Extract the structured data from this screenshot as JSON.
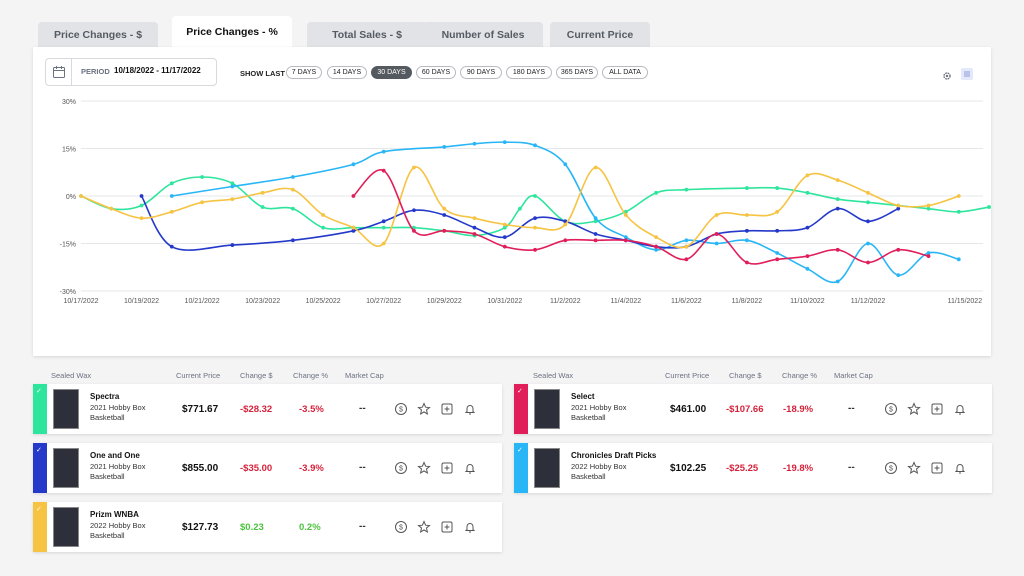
{
  "tabs": [
    {
      "label": "Price Changes - $",
      "active": false
    },
    {
      "label": "Price Changes - %",
      "active": true
    },
    {
      "label": "Total Sales - $",
      "active": false
    },
    {
      "label": "Number of Sales",
      "active": false
    },
    {
      "label": "Current Price",
      "active": false
    }
  ],
  "toolbar": {
    "period_label": "PERIOD",
    "period_value": "10/18/2022 - 11/17/2022",
    "show_last_label": "SHOW LAST",
    "ranges": [
      "7 DAYS",
      "14 DAYS",
      "30 DAYS",
      "60 DAYS",
      "90 DAYS",
      "180 DAYS",
      "365 DAYS",
      "ALL DATA"
    ],
    "active_range": "30 DAYS",
    "icons": [
      "calendar-icon",
      "gear-icon",
      "list-view-icon"
    ]
  },
  "chart_data": {
    "type": "line",
    "y_ticks": [
      "30%",
      "15%",
      "0%",
      "-15%",
      "-30%"
    ],
    "ylim": [
      -30,
      30
    ],
    "x_ticks": [
      "10/17/2022",
      "10/19/2022",
      "10/21/2022",
      "10/23/2022",
      "10/25/2022",
      "10/27/2022",
      "10/29/2022",
      "10/31/2022",
      "11/2/2022",
      "11/4/2022",
      "11/6/2022",
      "11/8/2022",
      "11/10/2022",
      "11/12/2022",
      "11/15/2022"
    ],
    "xlim": [
      0,
      29.8
    ],
    "grid": true,
    "series": [
      {
        "color": "#2ee59d",
        "points": [
          [
            0,
            0
          ],
          [
            1,
            -4
          ],
          [
            2,
            -3
          ],
          [
            3,
            4
          ],
          [
            4,
            6
          ],
          [
            5,
            4
          ],
          [
            6,
            -3.5
          ],
          [
            7,
            -4
          ],
          [
            8,
            -10
          ],
          [
            9,
            -10
          ],
          [
            10,
            -10
          ],
          [
            11,
            -10
          ],
          [
            12,
            -11
          ],
          [
            13,
            -12.5
          ],
          [
            14,
            -10
          ],
          [
            14.5,
            -4
          ],
          [
            15,
            0
          ],
          [
            16,
            -8
          ],
          [
            17,
            -8
          ],
          [
            18,
            -5
          ],
          [
            19,
            1
          ],
          [
            20,
            2
          ],
          [
            22,
            2.5
          ],
          [
            23,
            2.5
          ],
          [
            24,
            1
          ],
          [
            25,
            -1
          ],
          [
            26,
            -2
          ],
          [
            27,
            -3
          ],
          [
            28,
            -4
          ],
          [
            29,
            -5
          ],
          [
            30,
            -3.5
          ]
        ]
      },
      {
        "color": "#29b6f6",
        "points": [
          [
            3,
            0
          ],
          [
            5,
            3
          ],
          [
            7,
            6
          ],
          [
            9,
            10
          ],
          [
            10,
            14
          ],
          [
            12,
            15.5
          ],
          [
            13,
            16.5
          ],
          [
            14,
            17
          ],
          [
            15,
            16
          ],
          [
            16,
            10
          ],
          [
            17,
            -7
          ],
          [
            18,
            -13
          ],
          [
            19,
            -17
          ],
          [
            20,
            -14
          ],
          [
            21,
            -15
          ],
          [
            22,
            -14
          ],
          [
            23,
            -18
          ],
          [
            24,
            -23
          ],
          [
            25,
            -27
          ],
          [
            26,
            -15
          ],
          [
            27,
            -25
          ],
          [
            28,
            -18
          ],
          [
            29,
            -20
          ]
        ]
      },
      {
        "color": "#2439c9",
        "points": [
          [
            2,
            0
          ],
          [
            3,
            -16
          ],
          [
            5,
            -15.5
          ],
          [
            7,
            -14
          ],
          [
            9,
            -11
          ],
          [
            10,
            -8
          ],
          [
            11,
            -4.5
          ],
          [
            12,
            -6
          ],
          [
            13,
            -10
          ],
          [
            14,
            -13
          ],
          [
            15,
            -7
          ],
          [
            16,
            -8
          ],
          [
            17,
            -12
          ],
          [
            18,
            -14
          ],
          [
            19,
            -16
          ],
          [
            20,
            -16
          ],
          [
            21,
            -12
          ],
          [
            22,
            -11
          ],
          [
            23,
            -11
          ],
          [
            24,
            -10
          ],
          [
            25,
            -4
          ],
          [
            26,
            -8
          ],
          [
            27,
            -4
          ]
        ]
      },
      {
        "color": "#f6c343",
        "points": [
          [
            0,
            0
          ],
          [
            1,
            -4
          ],
          [
            2,
            -7
          ],
          [
            3,
            -5
          ],
          [
            4,
            -2
          ],
          [
            5,
            -1
          ],
          [
            6,
            1
          ],
          [
            7,
            2
          ],
          [
            8,
            -6
          ],
          [
            9,
            -10
          ],
          [
            10,
            -15
          ],
          [
            11,
            9
          ],
          [
            12,
            -4
          ],
          [
            13,
            -7
          ],
          [
            14,
            -9
          ],
          [
            15,
            -10
          ],
          [
            16,
            -9
          ],
          [
            17,
            9
          ],
          [
            18,
            -6
          ],
          [
            19,
            -13
          ],
          [
            20,
            -16
          ],
          [
            21,
            -6
          ],
          [
            22,
            -6
          ],
          [
            23,
            -5
          ],
          [
            24,
            6.5
          ],
          [
            25,
            5
          ],
          [
            26,
            1
          ],
          [
            27,
            -3
          ],
          [
            28,
            -3
          ],
          [
            29,
            0
          ]
        ]
      },
      {
        "color": "#e01e5a",
        "points": [
          [
            9,
            0
          ],
          [
            10,
            8
          ],
          [
            11,
            -11
          ],
          [
            12,
            -11
          ],
          [
            13,
            -12
          ],
          [
            14,
            -16
          ],
          [
            15,
            -17
          ],
          [
            16,
            -14
          ],
          [
            17,
            -14
          ],
          [
            18,
            -14
          ],
          [
            19,
            -16
          ],
          [
            20,
            -20
          ],
          [
            21,
            -12
          ],
          [
            22,
            -21
          ],
          [
            23,
            -20
          ],
          [
            24,
            -19
          ],
          [
            25,
            -17
          ],
          [
            26,
            -21
          ],
          [
            27,
            -17
          ],
          [
            28,
            -19
          ]
        ]
      }
    ]
  },
  "table_headers": {
    "sealed_wax": "Sealed Wax",
    "current_price": "Current Price",
    "change_usd": "Change $",
    "change_pct": "Change %",
    "market_cap": "Market Cap"
  },
  "cards_left": [
    {
      "name": "Spectra",
      "year": "2021 Hobby Box",
      "sport": "Basketball",
      "price": "$771.67",
      "change_usd": "-$28.32",
      "change_pct": "-3.5%",
      "market_cap": "--",
      "color": "#2ee59d",
      "trend": "neg"
    },
    {
      "name": "One and One",
      "year": "2021 Hobby Box",
      "sport": "Basketball",
      "price": "$855.00",
      "change_usd": "-$35.00",
      "change_pct": "-3.9%",
      "market_cap": "--",
      "color": "#2439c9",
      "trend": "neg"
    },
    {
      "name": "Prizm WNBA",
      "year": "2022 Hobby Box",
      "sport": "Basketball",
      "price": "$127.73",
      "change_usd": "$0.23",
      "change_pct": "0.2%",
      "market_cap": "--",
      "color": "#f6c343",
      "trend": "pos"
    }
  ],
  "cards_right": [
    {
      "name": "Select",
      "year": "2021 Hobby Box",
      "sport": "Basketball",
      "price": "$461.00",
      "change_usd": "-$107.66",
      "change_pct": "-18.9%",
      "market_cap": "--",
      "color": "#e01e5a",
      "trend": "neg"
    },
    {
      "name": "Chronicles Draft Picks",
      "year": "2022 Hobby Box",
      "sport": "Basketball",
      "price": "$102.25",
      "change_usd": "-$25.25",
      "change_pct": "-19.8%",
      "market_cap": "--",
      "color": "#29b6f6",
      "trend": "neg"
    }
  ],
  "card_check": "✓"
}
